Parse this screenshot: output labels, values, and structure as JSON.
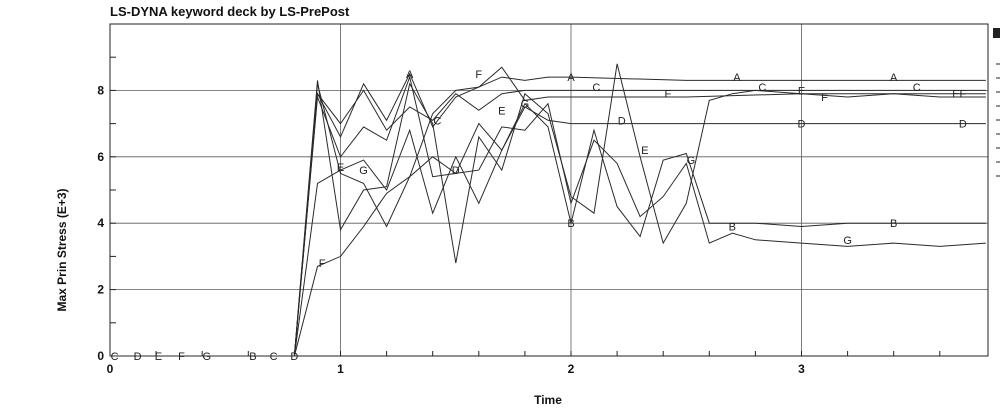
{
  "chart_data": {
    "type": "line",
    "title": "LS-DYNA keyword deck by LS-PrePost",
    "xlabel": "Time",
    "ylabel": "Max Prin  Stress (E+3)",
    "xlim": [
      0,
      3.8
    ],
    "ylim": [
      0,
      10
    ],
    "xticks": [
      "0",
      "1",
      "2",
      "3"
    ],
    "xtick_values": [
      0,
      1,
      2,
      3
    ],
    "yticks": [
      "0",
      "2",
      "4",
      "6",
      "8"
    ],
    "ytick_values": [
      0,
      2,
      4,
      6,
      8
    ],
    "grid": true,
    "legend": "right (cropped)",
    "series": [
      {
        "name": "A",
        "x": [
          0,
          0.8,
          0.9,
          1.0,
          1.1,
          1.2,
          1.3,
          1.4,
          1.5,
          1.6,
          1.7,
          1.8,
          1.9,
          2.0,
          2.5,
          3.0,
          3.5,
          3.8
        ],
        "y": [
          0,
          0,
          7.9,
          6.6,
          8.2,
          7.1,
          8.5,
          6.9,
          7.8,
          8.1,
          8.4,
          8.3,
          8.4,
          8.4,
          8.3,
          8.3,
          8.3,
          8.3
        ]
      },
      {
        "name": "B",
        "x": [
          0,
          0.8,
          0.9,
          1.0,
          1.1,
          1.2,
          1.3,
          1.4,
          1.5,
          1.6,
          1.7,
          1.8,
          1.9,
          2.0,
          2.1,
          2.2,
          2.3,
          2.4,
          2.5,
          2.6,
          2.7,
          2.8,
          3.0,
          3.2,
          3.4,
          3.6,
          3.8
        ],
        "y": [
          0,
          0,
          7.8,
          6.0,
          6.9,
          6.5,
          8.4,
          5.4,
          5.5,
          7.0,
          6.2,
          7.6,
          6.9,
          4.0,
          6.8,
          4.5,
          3.6,
          5.9,
          6.1,
          4.0,
          4.0,
          4.0,
          3.9,
          4.0,
          4.0,
          4.0,
          4.0
        ]
      },
      {
        "name": "C",
        "x": [
          0,
          0.8,
          0.9,
          1.0,
          1.1,
          1.2,
          1.3,
          1.4,
          1.5,
          1.6,
          1.7,
          1.8,
          1.9,
          2.0,
          2.5,
          3.0,
          3.5,
          3.8
        ],
        "y": [
          0,
          0,
          7.9,
          7.0,
          8.0,
          6.8,
          7.5,
          7.1,
          7.9,
          7.4,
          7.9,
          8.0,
          8.0,
          8.0,
          8.0,
          8.0,
          8.0,
          8.0
        ]
      },
      {
        "name": "D",
        "x": [
          0,
          0.8,
          0.9,
          1.0,
          1.1,
          1.2,
          1.3,
          1.4,
          1.5,
          1.6,
          1.7,
          1.8,
          1.9,
          2.0,
          2.5,
          3.0,
          3.5,
          3.8
        ],
        "y": [
          0,
          0,
          5.2,
          5.6,
          5.9,
          5.0,
          6.8,
          4.3,
          6.0,
          4.6,
          6.2,
          7.5,
          7.1,
          7.0,
          7.0,
          7.0,
          7.0,
          7.0
        ]
      },
      {
        "name": "E",
        "x": [
          0,
          0.8,
          0.9,
          1.0,
          1.1,
          1.2,
          1.3,
          1.4,
          1.5,
          1.6,
          1.7,
          1.8,
          1.9,
          2.0,
          2.1,
          2.2,
          2.3,
          2.4,
          2.5,
          2.6,
          2.7,
          2.8,
          3.0,
          3.2,
          3.4,
          3.6,
          3.8
        ],
        "y": [
          0,
          0,
          8.3,
          3.8,
          5.0,
          5.1,
          8.2,
          7.0,
          2.8,
          6.6,
          5.6,
          7.9,
          7.3,
          4.8,
          4.3,
          8.8,
          6.0,
          3.4,
          4.6,
          7.7,
          7.9,
          8.0,
          7.9,
          7.8,
          7.9,
          7.8,
          7.8
        ]
      },
      {
        "name": "F",
        "x": [
          0,
          0.8,
          0.9,
          1.0,
          1.1,
          1.2,
          1.3,
          1.4,
          1.5,
          1.6,
          1.7,
          1.8,
          1.9,
          2.0,
          2.5,
          3.0,
          3.5,
          3.8
        ],
        "y": [
          0,
          0,
          2.7,
          3.0,
          3.9,
          4.9,
          5.4,
          7.3,
          8.0,
          8.1,
          8.7,
          7.7,
          7.8,
          7.8,
          7.8,
          7.9,
          7.9,
          7.9
        ]
      },
      {
        "name": "G",
        "x": [
          0,
          0.8,
          0.9,
          1.0,
          1.1,
          1.2,
          1.3,
          1.4,
          1.5,
          1.6,
          1.7,
          1.8,
          1.9,
          2.0,
          2.1,
          2.2,
          2.3,
          2.4,
          2.5,
          2.6,
          2.7,
          2.8,
          3.0,
          3.2,
          3.4,
          3.6,
          3.8
        ],
        "y": [
          0,
          0,
          8.2,
          5.5,
          5.2,
          3.9,
          5.4,
          6.0,
          5.5,
          5.6,
          6.9,
          6.8,
          7.6,
          4.6,
          6.5,
          5.8,
          4.2,
          4.8,
          5.8,
          3.4,
          3.7,
          3.5,
          3.4,
          3.3,
          3.4,
          3.3,
          3.4
        ]
      }
    ],
    "markers": [
      {
        "label": "C",
        "x": 0.02,
        "y": 0
      },
      {
        "label": "D",
        "x": 0.12,
        "y": 0
      },
      {
        "label": "E",
        "x": 0.21,
        "y": 0
      },
      {
        "label": "F",
        "x": 0.31,
        "y": 0
      },
      {
        "label": "G",
        "x": 0.42,
        "y": 0
      },
      {
        "label": "B",
        "x": 0.62,
        "y": 0
      },
      {
        "label": "C",
        "x": 0.71,
        "y": 0
      },
      {
        "label": "D",
        "x": 0.8,
        "y": 0
      },
      {
        "label": "A",
        "x": 1.3,
        "y": 8.5
      },
      {
        "label": "A",
        "x": 2.0,
        "y": 8.4
      },
      {
        "label": "A",
        "x": 2.72,
        "y": 8.4
      },
      {
        "label": "A",
        "x": 3.4,
        "y": 8.4
      },
      {
        "label": "C",
        "x": 1.42,
        "y": 7.1
      },
      {
        "label": "C",
        "x": 2.11,
        "y": 8.1
      },
      {
        "label": "C",
        "x": 2.83,
        "y": 8.1
      },
      {
        "label": "C",
        "x": 3.5,
        "y": 8.1
      },
      {
        "label": "D",
        "x": 1.5,
        "y": 5.6
      },
      {
        "label": "D",
        "x": 2.22,
        "y": 7.1
      },
      {
        "label": "D",
        "x": 3.0,
        "y": 7.0
      },
      {
        "label": "D",
        "x": 3.7,
        "y": 7.0
      },
      {
        "label": "E",
        "x": 1.0,
        "y": 5.7
      },
      {
        "label": "E",
        "x": 1.7,
        "y": 7.4
      },
      {
        "label": "E",
        "x": 2.32,
        "y": 6.2
      },
      {
        "label": "E",
        "x": 3.0,
        "y": 8.0
      },
      {
        "label": "E",
        "x": 3.67,
        "y": 7.9
      },
      {
        "label": "F",
        "x": 0.92,
        "y": 2.8
      },
      {
        "label": "F",
        "x": 1.6,
        "y": 8.5
      },
      {
        "label": "F",
        "x": 2.42,
        "y": 7.9
      },
      {
        "label": "F",
        "x": 3.1,
        "y": 7.8
      },
      {
        "label": "F",
        "x": 3.7,
        "y": 7.9
      },
      {
        "label": "G",
        "x": 1.1,
        "y": 5.6
      },
      {
        "label": "G",
        "x": 1.8,
        "y": 7.6
      },
      {
        "label": "G",
        "x": 2.52,
        "y": 5.9
      },
      {
        "label": "G",
        "x": 3.2,
        "y": 3.5
      },
      {
        "label": "B",
        "x": 2.0,
        "y": 4.0
      },
      {
        "label": "B",
        "x": 2.7,
        "y": 3.9
      },
      {
        "label": "B",
        "x": 3.4,
        "y": 4.0
      }
    ]
  }
}
